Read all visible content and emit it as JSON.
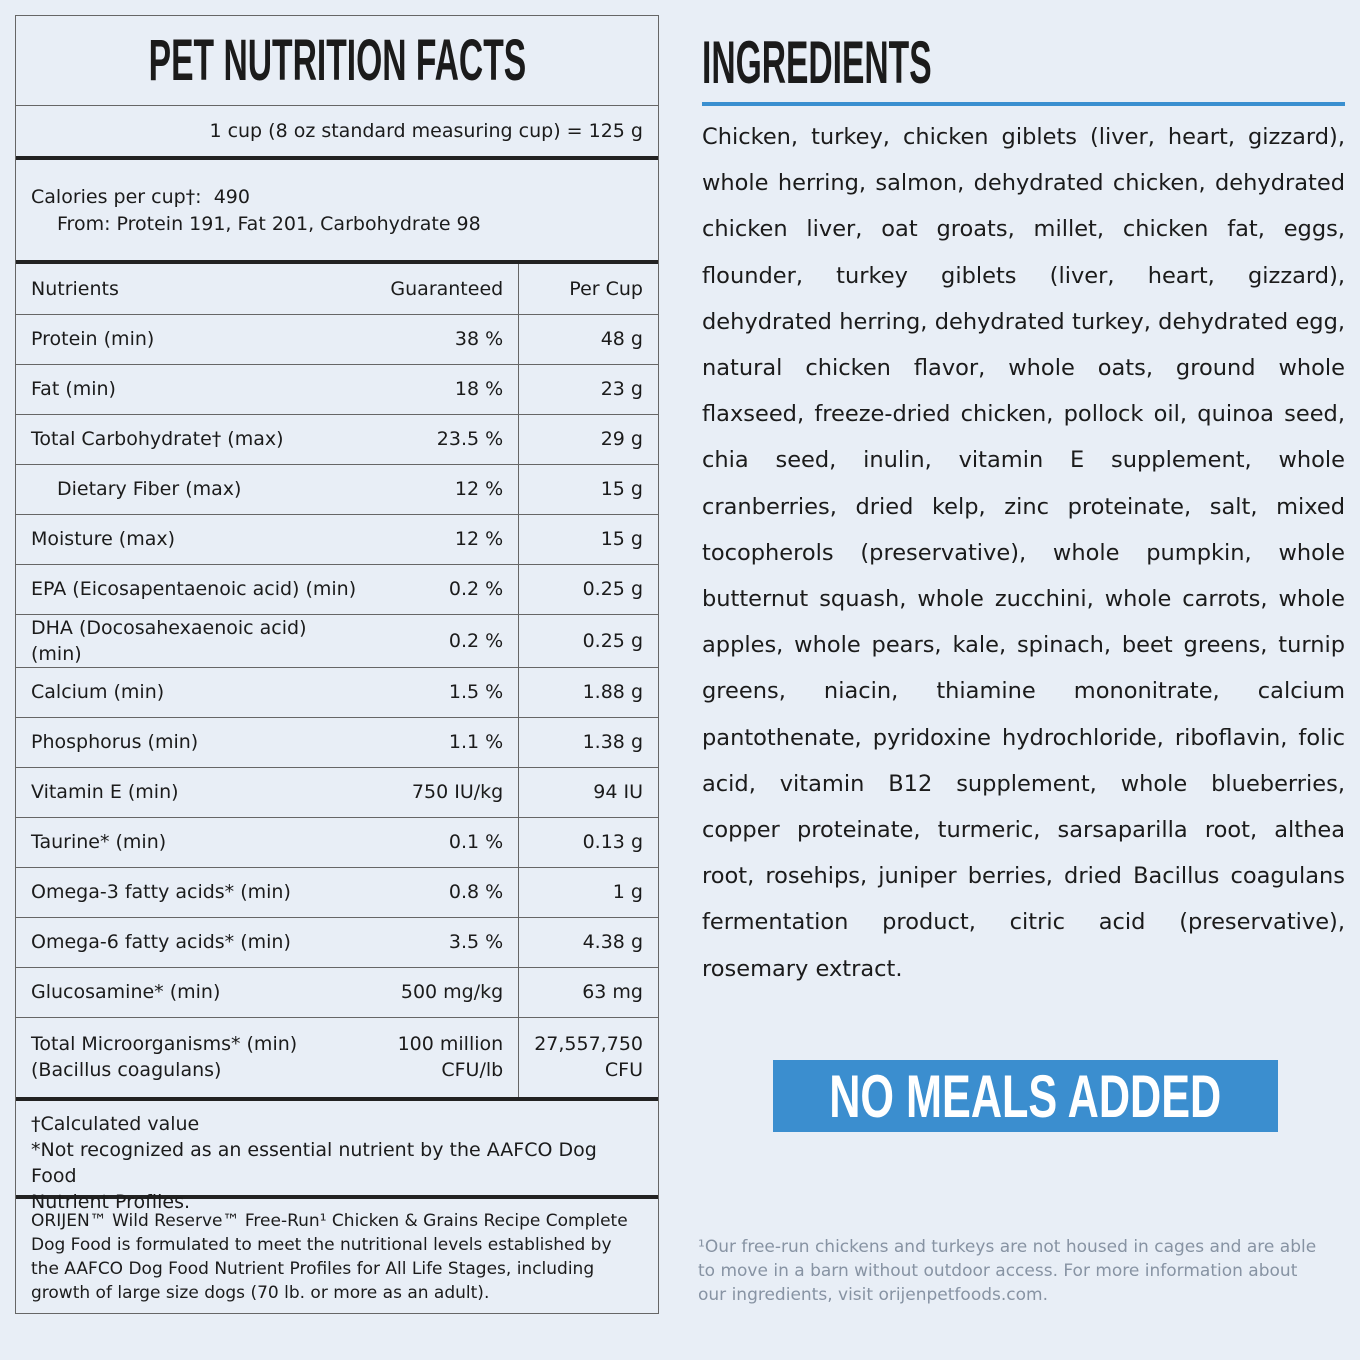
{
  "nutrition": {
    "title": "PET NUTRITION FACTS",
    "serving": "1 cup (8 oz standard measuring cup) = 125 g",
    "calories_label": "Calories per cup†:",
    "calories_value": "490",
    "calories_from": "From: Protein 191, Fat 201, Carbohydrate 98",
    "headers": [
      "Nutrients",
      "Guaranteed",
      "Per Cup"
    ],
    "rows": [
      [
        "Protein (min)",
        "38 %",
        "48 g"
      ],
      [
        "Fat (min)",
        "18 %",
        "23 g"
      ],
      [
        "Total Carbohydrate† (max)",
        "23.5 %",
        "29 g"
      ],
      [
        "Dietary Fiber (max)",
        "12 %",
        "15 g"
      ],
      [
        "Moisture (max)",
        "12 %",
        "15 g"
      ],
      [
        "EPA (Eicosapentaenoic acid) (min)",
        "0.2 %",
        "0.25 g"
      ],
      [
        "DHA (Docosahexaenoic acid) (min)",
        "0.2 %",
        "0.25 g"
      ],
      [
        "Calcium (min)",
        "1.5 %",
        "1.88 g"
      ],
      [
        "Phosphorus (min)",
        "1.1 %",
        "1.38 g"
      ],
      [
        "Vitamin E (min)",
        "750 IU/kg",
        "94 IU"
      ],
      [
        "Taurine* (min)",
        "0.1 %",
        "0.13 g"
      ],
      [
        "Omega-3 fatty acids* (min)",
        "0.8 %",
        "1 g"
      ],
      [
        "Omega-6 fatty acids* (min)",
        "3.5 %",
        "4.38 g"
      ],
      [
        "Glucosamine* (min)",
        "500 mg/kg",
        "63 mg"
      ],
      [
        "Total Microorganisms* (min)\n(Bacillus coagulans)",
        "100 million\nCFU/lb",
        "27,557,750\nCFU"
      ]
    ],
    "footnotes": [
      "†Calculated value",
      "*Not recognized as an essential nutrient by the AAFCO Dog Food\nNutrient Profiles."
    ],
    "statement": "ORIJEN™ Wild Reserve™ Free-Run¹ Chicken & Grains Recipe Complete Dog Food is formulated to meet the nutritional levels established by the AAFCO Dog Food Nutrient Profiles for All Life Stages, including growth of large size dogs (70 lb. or more as an adult)."
  },
  "ingredients": {
    "title": "INGREDIENTS",
    "text": "Chicken, turkey, chicken giblets (liver, heart, gizzard), whole herring, salmon, dehydrated chicken, dehydrated chicken liver, oat groats, millet, chicken fat, eggs, flounder, turkey giblets (liver, heart, gizzard), dehydrated herring, dehydrated turkey, dehydrated egg, natural chicken flavor, whole oats, ground whole flaxseed, freeze-dried chicken, pollock oil, quinoa seed, chia seed, inulin, vitamin E supplement, whole cranberries, dried kelp, zinc proteinate, salt, mixed tocopherols (preservative), whole pumpkin, whole butternut squash, whole zucchini, whole carrots, whole apples, whole pears, kale, spinach, beet greens, turnip greens, niacin, thiamine mononitrate, calcium pantothenate, pyridoxine hydrochloride, riboflavin, folic acid, vitamin B12 supplement, whole blueberries, copper proteinate, turmeric, sarsaparilla root, althea root, rosehips, juniper berries, dried Bacillus coagulans fermentation product, citric acid (preservative), rosemary extract.",
    "badge": "NO MEALS ADDED",
    "footnote": "¹Our free-run chickens and turkeys are not housed in cages and are able to move in a barn without outdoor access. For more information about our ingredients, visit orijenpetfoods.com."
  }
}
